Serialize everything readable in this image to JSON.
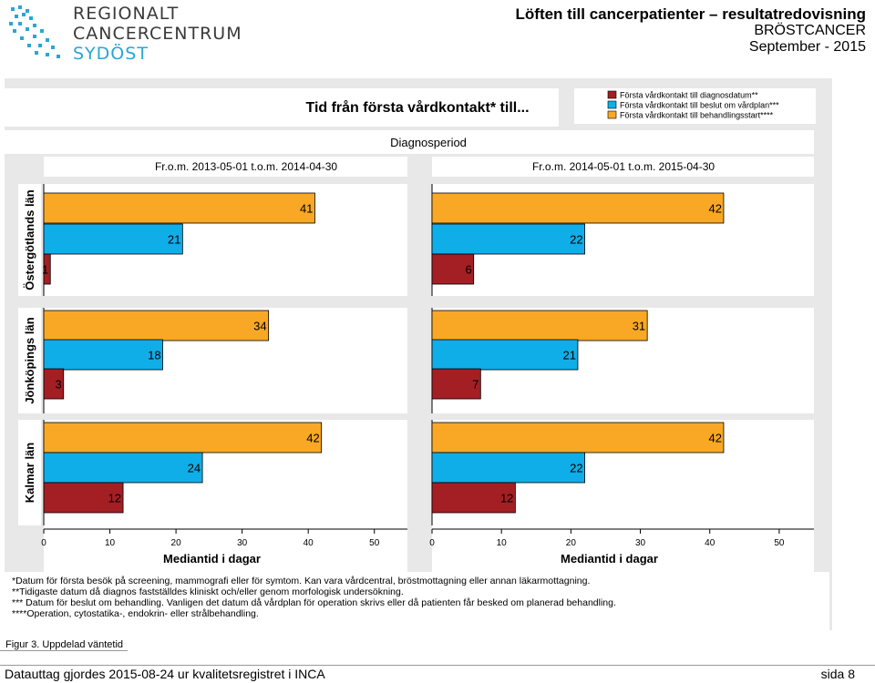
{
  "header": {
    "logo_line1": "REGIONALT",
    "logo_line2": "CANCERCENTRUM",
    "logo_line3": "SYDÖST",
    "title": "Löften till cancerpatienter – resultatredovisning",
    "subtitle": "BRÖSTCANCER",
    "date": "September - 2015"
  },
  "chart_data": {
    "type": "bar",
    "orientation": "horizontal",
    "title": "Tid från första vårdkontakt* till...",
    "column_header": "Diagnosperiod",
    "periods": [
      "Fr.o.m. 2013-05-01 t.o.m. 2014-04-30",
      "Fr.o.m. 2014-05-01 t.o.m. 2015-04-30"
    ],
    "rows": [
      "Östergötlands län",
      "Jönköpings län",
      "Kalmar län"
    ],
    "series": [
      {
        "name": "Första vårdkontakt till diagnosdatum**",
        "color": "#a31f24"
      },
      {
        "name": "Första vårdkontakt till beslut om vårdplan***",
        "color": "#10aee8"
      },
      {
        "name": "Första vårdkontakt till behandlingsstart****",
        "color": "#f9a825"
      }
    ],
    "values": [
      [
        [
          1,
          21,
          41
        ],
        [
          6,
          22,
          42
        ]
      ],
      [
        [
          3,
          18,
          34
        ],
        [
          7,
          21,
          31
        ]
      ],
      [
        [
          12,
          24,
          42
        ],
        [
          12,
          22,
          42
        ]
      ]
    ],
    "xlabel": "Mediantid i dagar",
    "xlim": [
      0,
      55
    ],
    "xticks": [
      0,
      10,
      20,
      30,
      40,
      50
    ]
  },
  "notes": [
    "*Datum för första besök på screening, mammografi eller för symtom. Kan vara vårdcentral, bröstmottagning eller annan läkarmottagning.",
    "**Tidigaste datum då diagnos fastställdes kliniskt och/eller genom morfologisk undersökning.",
    "*** Datum för beslut om behandling. Vanligen det datum då vårdplan för operation skrivs eller då patienten får besked om planerad behandling.",
    "****Operation, cytostatika-, endokrin- eller strålbehandling."
  ],
  "figure_caption": "Figur 3. Uppdelad väntetid",
  "footer": {
    "left": "Datauttag gjordes 2015-08-24 ur kvalitetsregistret i INCA",
    "right": "sida 8"
  }
}
